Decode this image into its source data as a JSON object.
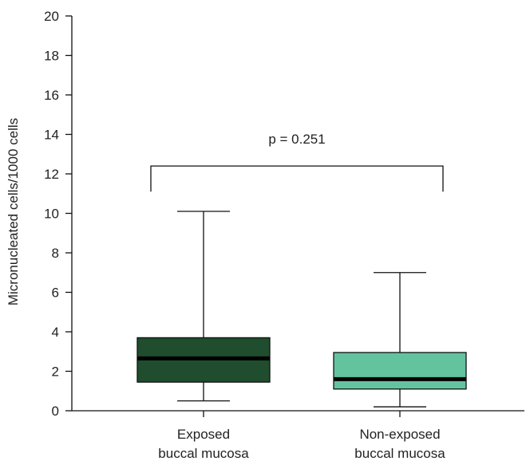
{
  "chart_data": {
    "type": "box",
    "ylabel": "Micronucleated cells/1000 cells",
    "ylim": [
      0,
      20
    ],
    "yticks": [
      0,
      2,
      4,
      6,
      8,
      10,
      12,
      14,
      16,
      18,
      20
    ],
    "grid": false,
    "categories": [
      [
        "Exposed",
        "buccal mucosa"
      ],
      [
        "Non-exposed",
        "buccal mucosa"
      ]
    ],
    "boxes": [
      {
        "min": 0.5,
        "q1": 1.45,
        "median": 2.65,
        "q3": 3.7,
        "max": 10.1,
        "color": "#1f4d2e"
      },
      {
        "min": 0.2,
        "q1": 1.1,
        "median": 1.6,
        "q3": 2.95,
        "max": 7.0,
        "color": "#64c39f"
      }
    ],
    "annotation": {
      "text": "p = 0.251",
      "bracket_level": 12.4,
      "bracket_drop": 11.1
    }
  }
}
